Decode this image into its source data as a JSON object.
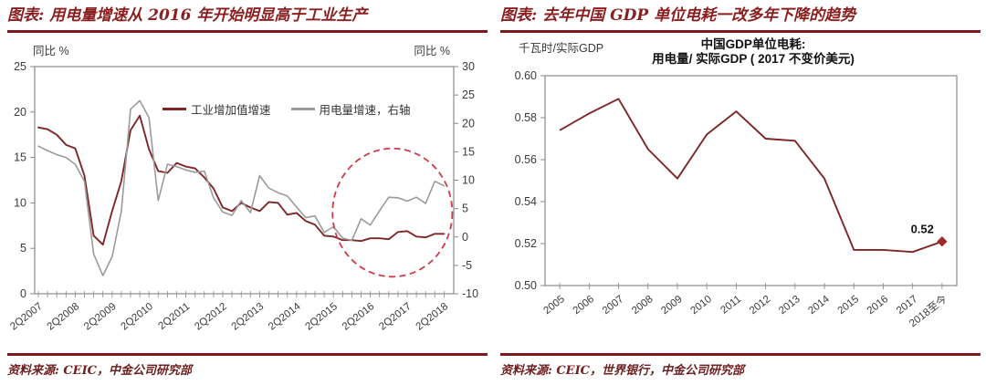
{
  "panels": [
    {
      "title": "图表: 用电量增速从 2016 年开始明显高于工业生产",
      "source": "资料来源: CEIC，中金公司研究部"
    },
    {
      "title": "图表: 去年中国 GDP 单位电耗一改多年下降的趋势",
      "source": "资料来源: CEIC，世界银行，中金公司研究部",
      "inner_title_line1": "中国GDP单位电耗:",
      "inner_title_line2": "用电量/ 实际GDP ( 2017 不变价美元)"
    }
  ],
  "colors": {
    "accent_maroon": "#8b1e1e",
    "rule_maroon": "#7b1a1a",
    "axis_gray": "#8a8a8a",
    "tick_gray": "#888888",
    "highlight_red": "#cf3a4a",
    "marker_red": "#9c2b2b"
  },
  "chart_data": [
    {
      "type": "line",
      "title": "用电量增速从 2016 年开始明显高于工业生产",
      "left_axis_unit": "同比 %",
      "right_axis_unit": "同比 %",
      "left_ylim": [
        0,
        25
      ],
      "right_ylim": [
        -10,
        30
      ],
      "left_yticks": [
        0,
        5,
        10,
        15,
        20,
        25
      ],
      "right_yticks": [
        -10,
        -5,
        0,
        5,
        10,
        15,
        20,
        25,
        30
      ],
      "x_tick_label_every": 4,
      "categories": [
        "2Q2007",
        "3Q2007",
        "4Q2007",
        "1Q2008",
        "2Q2008",
        "3Q2008",
        "4Q2008",
        "1Q2009",
        "2Q2009",
        "3Q2009",
        "4Q2009",
        "1Q2010",
        "2Q2010",
        "3Q2010",
        "4Q2010",
        "1Q2011",
        "2Q2011",
        "3Q2011",
        "4Q2011",
        "1Q2012",
        "2Q2012",
        "3Q2012",
        "4Q2012",
        "1Q2013",
        "2Q2013",
        "3Q2013",
        "4Q2013",
        "1Q2014",
        "2Q2014",
        "3Q2014",
        "4Q2014",
        "1Q2015",
        "2Q2015",
        "3Q2015",
        "4Q2015",
        "1Q2016",
        "2Q2016",
        "3Q2016",
        "4Q2016",
        "1Q2017",
        "2Q2017",
        "3Q2017",
        "4Q2017",
        "1Q2018",
        "2Q2018"
      ],
      "series": [
        {
          "name": "工业增加值增速",
          "axis": "left",
          "color": "#7f2626",
          "values": [
            18.3,
            18.1,
            17.5,
            16.4,
            16.0,
            13.0,
            6.4,
            5.4,
            9.1,
            12.4,
            18.0,
            19.6,
            15.9,
            13.5,
            13.3,
            14.4,
            14.0,
            13.8,
            12.8,
            11.6,
            9.5,
            9.1,
            10.0,
            9.5,
            9.1,
            10.1,
            10.0,
            8.7,
            8.9,
            8.0,
            7.6,
            6.4,
            6.3,
            5.9,
            5.9,
            5.8,
            6.1,
            6.1,
            6.0,
            6.8,
            6.9,
            6.3,
            6.2,
            6.6,
            6.6
          ]
        },
        {
          "name": "用电量增速，右轴",
          "axis": "right",
          "color": "#9b9b9b",
          "values": [
            16.0,
            15.2,
            14.5,
            14.0,
            12.8,
            9.8,
            -3.0,
            -6.8,
            -3.5,
            4.5,
            22.5,
            24.0,
            21.0,
            6.4,
            12.8,
            12.4,
            11.8,
            11.4,
            11.6,
            6.9,
            4.4,
            3.8,
            6.4,
            4.3,
            10.8,
            8.6,
            7.8,
            7.2,
            5.3,
            3.4,
            3.7,
            0.8,
            1.8,
            -0.2,
            -0.6,
            3.2,
            2.1,
            4.6,
            7.0,
            6.9,
            6.3,
            7.0,
            5.9,
            9.8,
            9.0
          ]
        }
      ],
      "highlight_ellipse": {
        "x_index_center": 38.4,
        "x_index_radius": 6.5,
        "y_right_center": 4.3,
        "y_right_radius": 11.3,
        "color": "#cf3a4a"
      }
    },
    {
      "type": "line",
      "title": "中国GDP单位电耗: 用电量/ 实际GDP ( 2017 不变价美元)",
      "ylabel": "千瓦时/实际GDP",
      "ylim": [
        0.5,
        0.6
      ],
      "yticks": [
        0.5,
        0.52,
        0.54,
        0.56,
        0.58,
        0.6
      ],
      "categories": [
        "2005",
        "2006",
        "2007",
        "2008",
        "2009",
        "2010",
        "2011",
        "2012",
        "2013",
        "2014",
        "2015",
        "2016",
        "2017",
        "2018至今"
      ],
      "series": [
        {
          "name": "中国GDP单位电耗",
          "color": "#7f2626",
          "values": [
            0.574,
            0.582,
            0.589,
            0.565,
            0.551,
            0.572,
            0.583,
            0.57,
            0.569,
            0.551,
            0.517,
            0.517,
            0.516,
            0.521
          ]
        }
      ],
      "last_point_label": "0.52"
    }
  ]
}
